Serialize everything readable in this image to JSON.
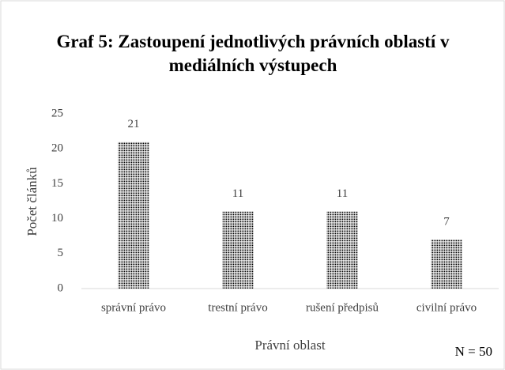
{
  "chart_data": {
    "type": "bar",
    "title": "Graf 5: Zastoupení jednotlivých právních oblastí v mediálních výstupech",
    "x_label": "Právní oblast",
    "y_label": "Počet článků",
    "annotation": "N = 50",
    "categories": [
      "správní právo",
      "trestní právo",
      "rušení předpisů",
      "civilní právo"
    ],
    "values": [
      21,
      11,
      11,
      7
    ],
    "color": "#000000",
    "ylim": [
      0,
      25
    ],
    "yticks": [
      0,
      5,
      10,
      15,
      20,
      25
    ],
    "grid": false
  }
}
